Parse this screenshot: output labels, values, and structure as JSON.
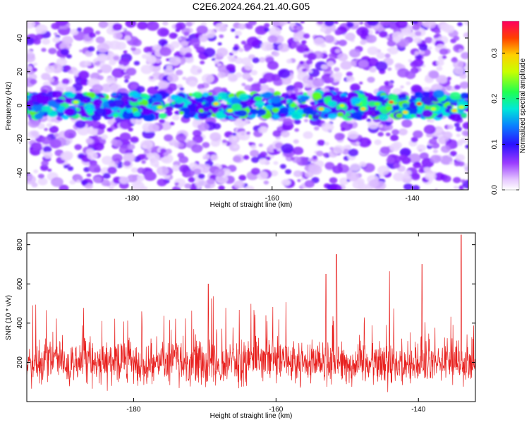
{
  "title": "C2E6.2024.264.21.40.G05",
  "chart_data": [
    {
      "type": "heatmap",
      "xlabel": "Height of straight line (km)",
      "ylabel": "Frequency (Hz)",
      "xlim": [
        -195,
        -132
      ],
      "ylim": [
        -50,
        50
      ],
      "x_ticks": [
        -180,
        -160,
        -140
      ],
      "x_tick_labels": [
        "-180",
        "-160",
        "-140"
      ],
      "y_ticks": [
        -40,
        -20,
        0,
        20,
        40
      ],
      "y_tick_labels": [
        "-40",
        "-20",
        "0",
        "20",
        "40"
      ],
      "colorbar": {
        "label": "Normalized spectral amplitude",
        "range": [
          0.0,
          0.37
        ],
        "ticks": [
          0.0,
          0.1,
          0.2,
          0.3
        ],
        "tick_labels": [
          "0.0",
          "0.1",
          "0.2",
          "0.3"
        ]
      },
      "band": {
        "center_hz": 0,
        "half_width_hz": 7,
        "peak_amplitude": 0.37,
        "peak_x_km": -139
      }
    },
    {
      "type": "line",
      "xlabel": "Height of straight line (km)",
      "ylabel": "SNR (10 * v/v)",
      "xlim": [
        -195,
        -132
      ],
      "ylim": [
        0,
        860
      ],
      "x_ticks": [
        -180,
        -160,
        -140
      ],
      "x_tick_labels": [
        "-180",
        "-160",
        "-140"
      ],
      "y_ticks": [
        200,
        400,
        600,
        800
      ],
      "y_tick_labels": [
        "200",
        "400",
        "600",
        "800"
      ],
      "color": "#e8201e",
      "baseline_mean": 200,
      "max_value": 850,
      "peaks": [
        {
          "x": -169.5,
          "y": 600
        },
        {
          "x": -153,
          "y": 650
        },
        {
          "x": -151.5,
          "y": 750
        },
        {
          "x": -139.5,
          "y": 700
        },
        {
          "x": -134,
          "y": 850
        }
      ]
    }
  ]
}
